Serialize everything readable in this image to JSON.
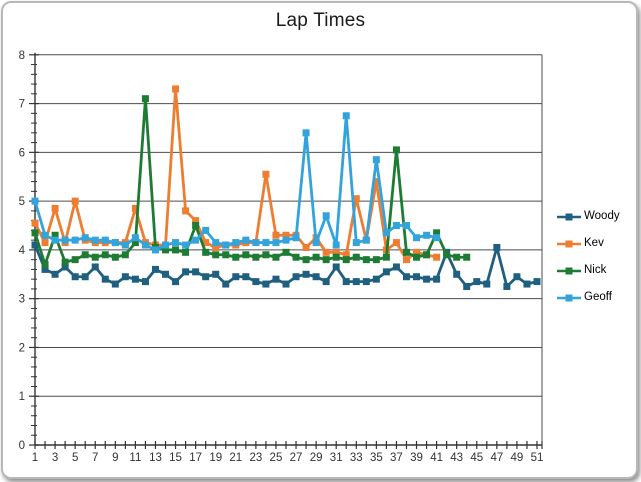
{
  "title": "Lap Times",
  "chart_data": {
    "type": "line",
    "title": "Lap Times",
    "xlabel": "",
    "ylabel": "",
    "x_range": [
      1,
      51
    ],
    "x_tick_labels": [
      "1",
      "3",
      "5",
      "7",
      "9",
      "11",
      "13",
      "15",
      "17",
      "19",
      "21",
      "23",
      "25",
      "27",
      "29",
      "31",
      "33",
      "35",
      "37",
      "39",
      "41",
      "43",
      "45",
      "47",
      "49",
      "51"
    ],
    "ylim": [
      0,
      8
    ],
    "y_ticks": [
      0,
      1,
      2,
      3,
      4,
      5,
      6,
      7,
      8
    ],
    "y_minor_tick_step": 0.2,
    "grid": "horizontal-major",
    "gridline_color": "#4d4d4d",
    "axis_color": "#333333",
    "tick_label_color": "#333333",
    "legend_position": "right",
    "marker": "square",
    "series": [
      {
        "name": "Woody",
        "color": "#1f5f7f",
        "start_x": 1,
        "values": [
          4.1,
          3.6,
          3.5,
          3.65,
          3.45,
          3.45,
          3.65,
          3.4,
          3.3,
          3.45,
          3.4,
          3.35,
          3.6,
          3.5,
          3.35,
          3.55,
          3.55,
          3.45,
          3.5,
          3.3,
          3.45,
          3.45,
          3.35,
          3.3,
          3.4,
          3.3,
          3.45,
          3.5,
          3.45,
          3.35,
          3.65,
          3.35,
          3.35,
          3.35,
          3.4,
          3.55,
          3.65,
          3.45,
          3.45,
          3.4,
          3.4,
          3.95,
          3.5,
          3.25,
          3.35,
          3.3,
          4.05,
          3.25,
          3.45,
          3.3,
          3.35
        ]
      },
      {
        "name": "Kev",
        "color": "#ed7d31",
        "start_x": 1,
        "values": [
          4.55,
          4.15,
          4.85,
          4.15,
          5.0,
          4.2,
          4.15,
          4.15,
          4.15,
          4.15,
          4.85,
          4.15,
          4.1,
          4.1,
          7.3,
          4.8,
          4.6,
          4.15,
          4.05,
          4.1,
          4.1,
          4.15,
          4.15,
          5.55,
          4.3,
          4.3,
          4.3,
          4.05,
          4.25,
          3.95,
          3.95,
          3.9,
          5.05,
          4.2,
          5.4,
          4.0,
          4.15,
          3.8,
          3.95,
          3.9,
          3.85
        ]
      },
      {
        "name": "Nick",
        "color": "#1e7b34",
        "start_x": 1,
        "values": [
          4.35,
          3.7,
          4.3,
          3.75,
          3.8,
          3.9,
          3.85,
          3.9,
          3.85,
          3.9,
          4.15,
          7.1,
          4.05,
          4.0,
          4.0,
          3.95,
          4.5,
          3.95,
          3.9,
          3.9,
          3.85,
          3.9,
          3.85,
          3.9,
          3.85,
          3.95,
          3.85,
          3.8,
          3.85,
          3.8,
          3.85,
          3.8,
          3.85,
          3.8,
          3.8,
          3.85,
          6.05,
          3.95,
          3.85,
          3.9,
          4.35,
          3.9,
          3.85,
          3.85
        ]
      },
      {
        "name": "Geoff",
        "color": "#33a3dc",
        "start_x": 1,
        "values": [
          5.0,
          4.3,
          4.2,
          4.2,
          4.2,
          4.25,
          4.2,
          4.2,
          4.15,
          4.1,
          4.25,
          4.1,
          4.0,
          4.1,
          4.15,
          4.1,
          4.2,
          4.4,
          4.15,
          4.1,
          4.15,
          4.2,
          4.15,
          4.15,
          4.15,
          4.2,
          4.25,
          6.4,
          4.15,
          4.7,
          4.1,
          6.75,
          4.15,
          4.2,
          5.85,
          4.35,
          4.5,
          4.5,
          4.25,
          4.3,
          4.25
        ]
      }
    ]
  }
}
